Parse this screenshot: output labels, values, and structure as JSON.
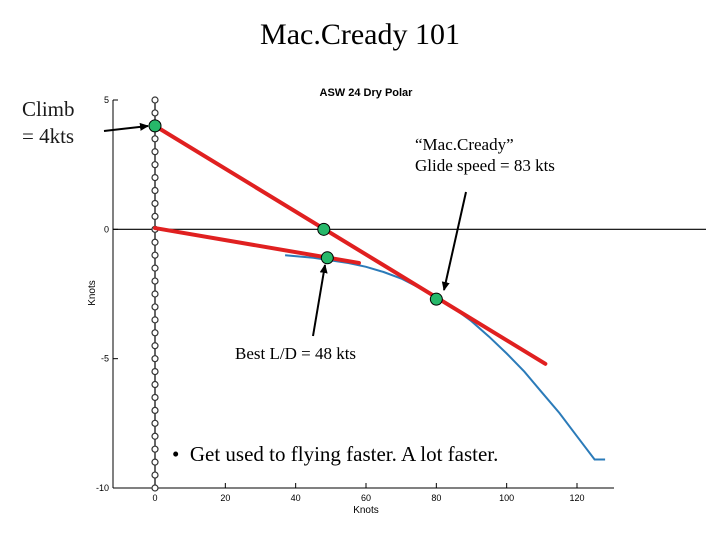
{
  "slide": {
    "title": "Mac.Cready 101",
    "climb_label_line1": "Climb",
    "climb_label_line2": "= 4kts",
    "mc_label_line1": "“Mac.Cready”",
    "mc_label_line2": "Glide speed = 83 kts",
    "ld_label": "Best L/D = 48  kts",
    "bullet_symbol": "•",
    "bullet_text": "Get used to flying faster. A lot faster."
  },
  "chart_data": {
    "type": "line",
    "title": "ASW 24 Dry Polar",
    "xlabel": "Knots",
    "ylabel": "Knots",
    "xlim": [
      0,
      130
    ],
    "ylim": [
      -10,
      5
    ],
    "xticks": [
      0,
      20,
      40,
      60,
      80,
      100,
      120
    ],
    "yticks": [
      5,
      0,
      -5,
      -10
    ],
    "grid": false,
    "polar_curve": {
      "color": "#2b7bb9",
      "x": [
        37,
        45,
        50,
        55,
        60,
        65,
        70,
        75,
        80,
        85,
        90,
        95,
        100,
        105,
        110,
        115,
        120,
        125,
        128
      ],
      "y": [
        -1.0,
        -1.1,
        -1.2,
        -1.3,
        -1.45,
        -1.65,
        -1.9,
        -2.25,
        -2.6,
        -3.05,
        -3.55,
        -4.15,
        -4.8,
        -5.5,
        -6.3,
        -7.1,
        -8.0,
        -8.9,
        -8.9
      ]
    },
    "tangent_lines": [
      {
        "name": "",
        "color": "#e02020",
        "x": [
          0,
          111
        ],
        "y": [
          4.0,
          -5.2
        ]
      },
      {
        "name": "",
        "color": "#e02020",
        "x": [
          0,
          58
        ],
        "y": [
          0.05,
          -1.3
        ]
      }
    ],
    "key_points": {
      "color": "#27b86a",
      "x": [
        0,
        48,
        49,
        80
      ],
      "y": [
        4.0,
        0,
        -1.1,
        -2.7
      ]
    },
    "axis_markers": {
      "x": 0,
      "y": [
        5,
        4.5,
        4,
        3.5,
        3,
        2.5,
        2,
        1.5,
        1,
        0.5,
        0,
        -0.5,
        -1,
        -1.5,
        -2,
        -2.5,
        -3,
        -3.5,
        -4,
        -4.5,
        -5,
        -5.5,
        -6,
        -6.5,
        -7,
        -7.5,
        -8,
        -8.5,
        -9,
        -9.5,
        -10
      ]
    }
  }
}
